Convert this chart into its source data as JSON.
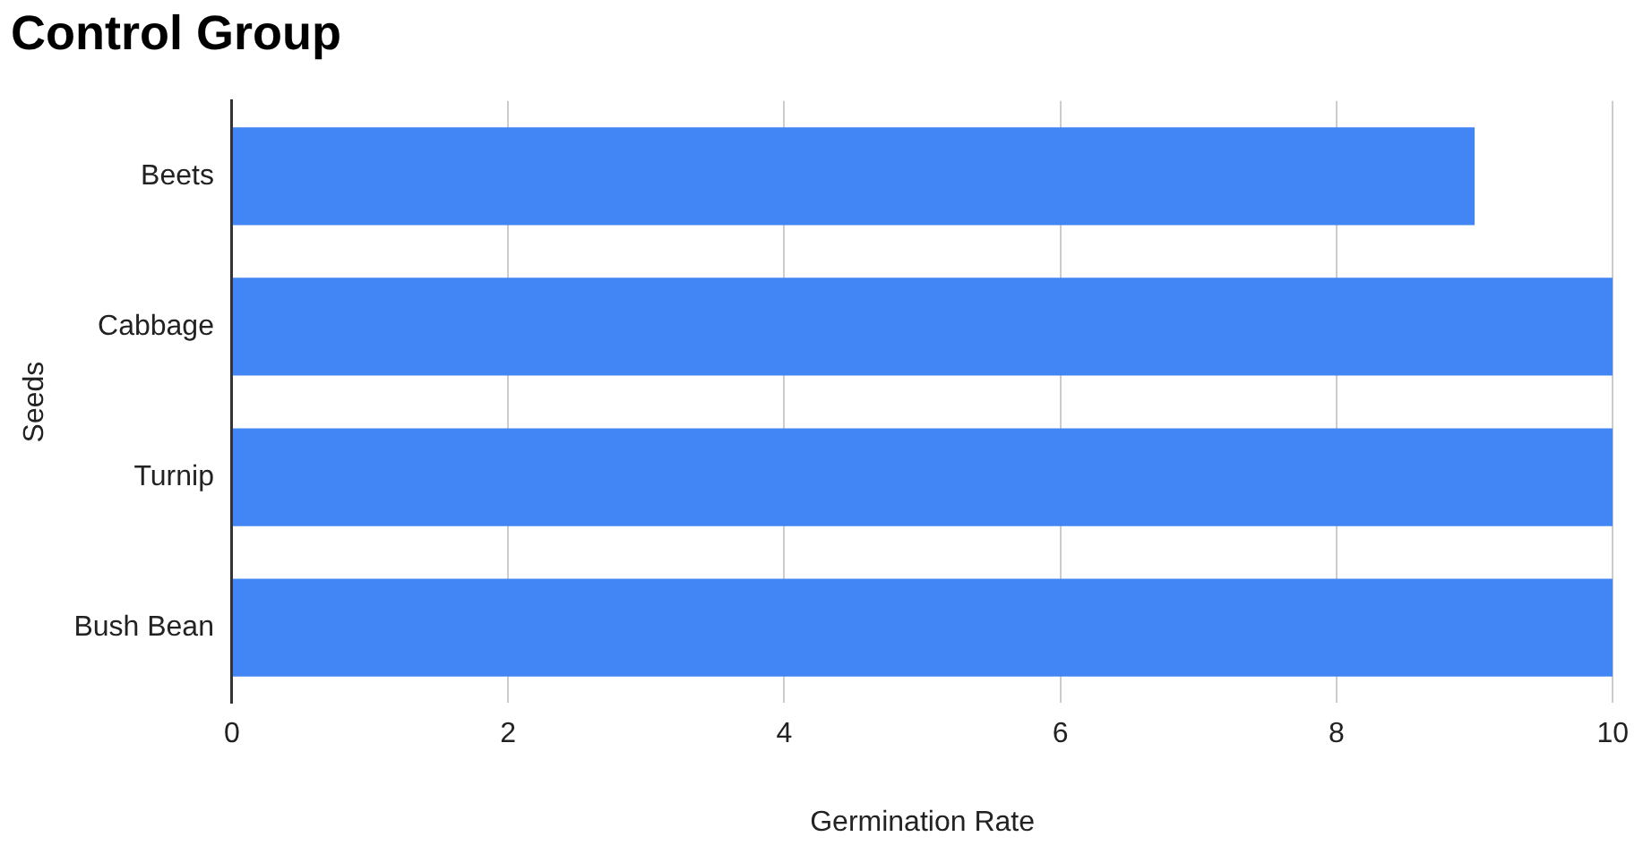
{
  "chart_data": {
    "type": "bar",
    "orientation": "horizontal",
    "title": "Control Group",
    "xlabel": "Germination Rate",
    "ylabel": "Seeds",
    "categories": [
      "Beets",
      "Cabbage",
      "Turnip",
      "Bush Bean"
    ],
    "values": [
      9,
      10,
      10,
      10
    ],
    "color": "#4285f4",
    "xlim": [
      0,
      10
    ],
    "xticks": [
      0,
      2,
      4,
      6,
      8,
      10
    ],
    "grid": "x",
    "legend": false
  }
}
